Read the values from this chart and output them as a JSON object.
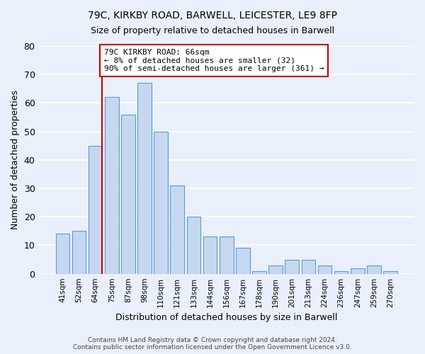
{
  "title1": "79C, KIRKBY ROAD, BARWELL, LEICESTER, LE9 8FP",
  "title2": "Size of property relative to detached houses in Barwell",
  "xlabel": "Distribution of detached houses by size in Barwell",
  "ylabel": "Number of detached properties",
  "bar_labels": [
    "41sqm",
    "52sqm",
    "64sqm",
    "75sqm",
    "87sqm",
    "98sqm",
    "110sqm",
    "121sqm",
    "133sqm",
    "144sqm",
    "156sqm",
    "167sqm",
    "178sqm",
    "190sqm",
    "201sqm",
    "213sqm",
    "224sqm",
    "236sqm",
    "247sqm",
    "259sqm",
    "270sqm"
  ],
  "bar_values": [
    14,
    15,
    45,
    62,
    56,
    67,
    50,
    31,
    20,
    13,
    13,
    9,
    1,
    3,
    5,
    5,
    3,
    1,
    2,
    3,
    1
  ],
  "bar_color": "#c5d8f0",
  "bar_edge_color": "#5b9bd5",
  "bg_color": "#eaf0fb",
  "grid_color": "#ffffff",
  "vline_x_index": 2,
  "vline_color": "#cc0000",
  "annotation_title": "79C KIRKBY ROAD: 66sqm",
  "annotation_line1": "← 8% of detached houses are smaller (32)",
  "annotation_line2": "90% of semi-detached houses are larger (361) →",
  "annotation_box_color": "#ffffff",
  "annotation_box_edge": "#cc0000",
  "ylim": [
    0,
    80
  ],
  "yticks": [
    0,
    10,
    20,
    30,
    40,
    50,
    60,
    70,
    80
  ],
  "footer1": "Contains HM Land Registry data © Crown copyright and database right 2024.",
  "footer2": "Contains public sector information licensed under the Open Government Licence v3.0."
}
